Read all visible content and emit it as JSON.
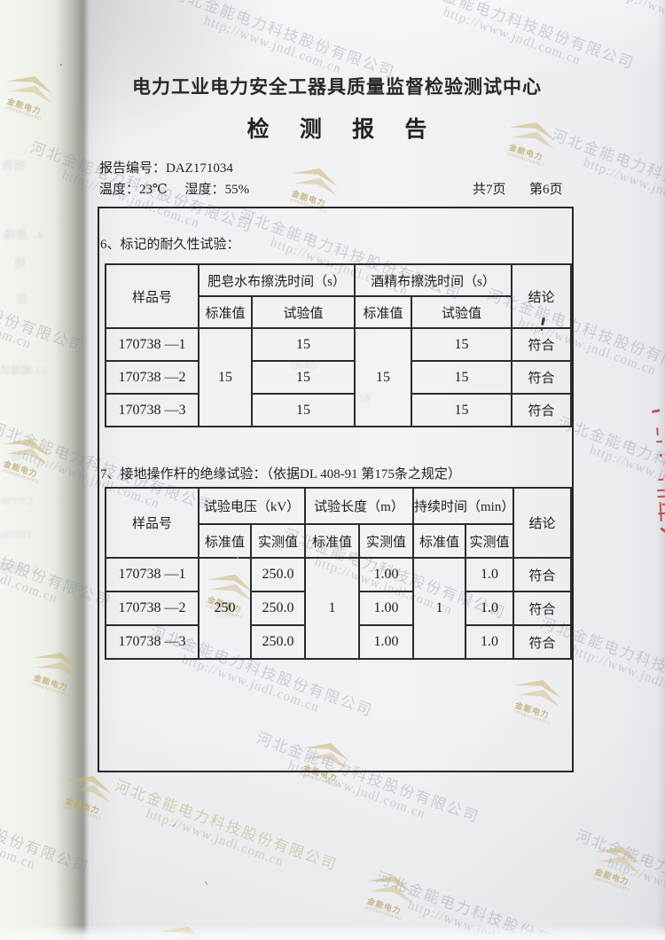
{
  "meta": {
    "org_title": "电力工业电力安全工器具质量监督检验测试中心",
    "report_title": "检 测 报 告",
    "report_no_label": "报告编号：",
    "report_no": "DAZ171034",
    "temp_label": "温度：",
    "temp_value": "23℃",
    "humidity_label": "湿度：",
    "humidity_value": "55%",
    "total_pages": "共7页",
    "current_page": "第6页"
  },
  "section6": {
    "title": "6、标记的耐久性试验：",
    "table": {
      "headers": {
        "sample": "样品号",
        "soap": "肥皂水布擦洗时间（s）",
        "alcohol": "酒精布擦洗时间（s）",
        "conclusion": "结论",
        "standard": "标准值",
        "test": "试验值"
      },
      "soap_standard": "15",
      "alcohol_standard": "15",
      "rows": [
        {
          "sample": "170738 —1",
          "soap_test": "15",
          "alcohol_test": "15",
          "conclusion": "符合"
        },
        {
          "sample": "170738 —2",
          "soap_test": "15",
          "alcohol_test": "15",
          "conclusion": "符合"
        },
        {
          "sample": "170738 —3",
          "soap_test": "15",
          "alcohol_test": "15",
          "conclusion": "符合"
        }
      ]
    }
  },
  "section7": {
    "title": "7、接地操作杆的绝缘试验：（依据DL 408-91 第175条之规定）",
    "table": {
      "headers": {
        "sample": "样品号",
        "voltage": "试验电压（kV）",
        "length": "试验长度（m）",
        "duration": "持续时间（min）",
        "conclusion": "结论",
        "standard": "标准值",
        "measured": "实测值"
      },
      "voltage_standard": "250",
      "length_standard": "1",
      "duration_standard": "1",
      "rows": [
        {
          "sample": "170738 —1",
          "voltage_measured": "250.0",
          "length_measured": "1.00",
          "duration_measured": "1.0",
          "conclusion": "符合"
        },
        {
          "sample": "170738 —2",
          "voltage_measured": "250.0",
          "length_measured": "1.00",
          "duration_measured": "1.0",
          "conclusion": "符合"
        },
        {
          "sample": "170738 —3",
          "voltage_measured": "250.0",
          "length_measured": "1.00",
          "duration_measured": "1.0",
          "conclusion": "符合"
        }
      ]
    }
  },
  "watermark": {
    "company": "河北金能电力科技股份有限公司",
    "url": "http://www.jndl.com.cn",
    "logo_text": "金能电力",
    "logo_subtext": "JINNENGDIANLI"
  },
  "ghosts": [
    "报告",
    "4、绝缘",
    "绝",
    "在",
    "5.1 绝缘试",
    "标",
    "170738",
    "170738",
    "5.2 绝缘",
    "56.65",
    "58",
    "1min"
  ],
  "colors": {
    "seal_red": "#c63a2e",
    "watermark_gray": "#7e899c",
    "watermark_tan": "#b7a870",
    "border": "#262626",
    "paper": "#f2f3f5"
  }
}
